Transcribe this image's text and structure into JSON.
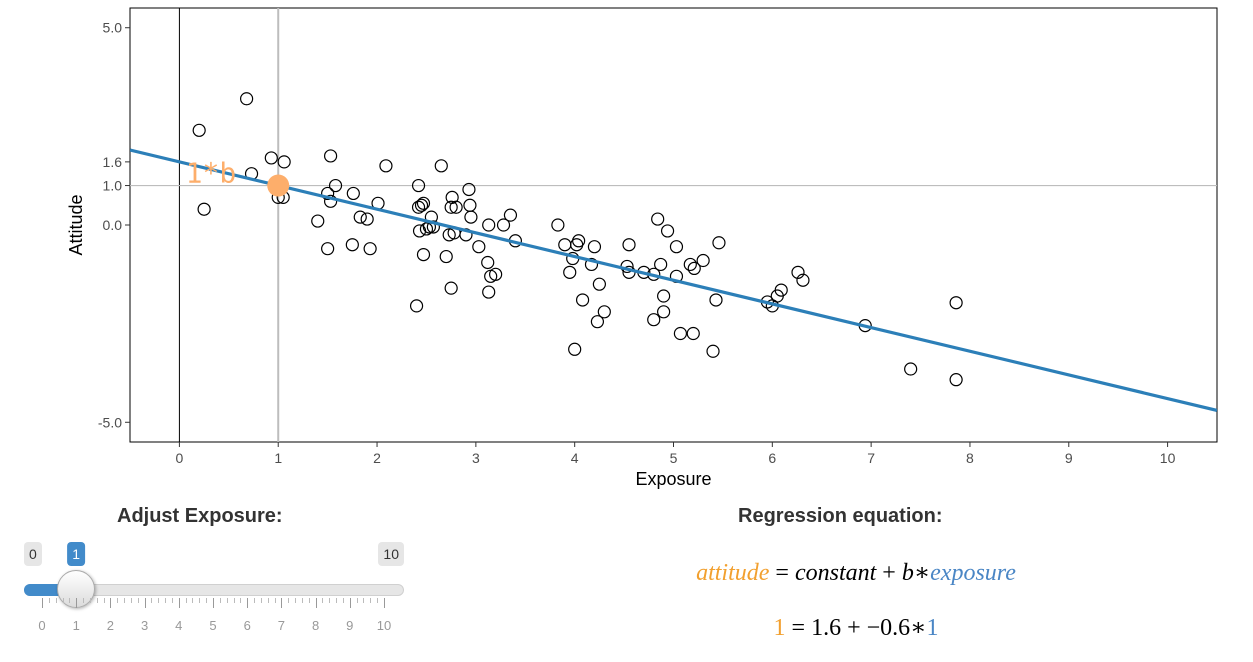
{
  "chart_data": {
    "type": "scatter",
    "xlabel": "Exposure",
    "ylabel": "Attitude",
    "xlim": [
      -0.5,
      10.5
    ],
    "ylim": [
      -5.5,
      5.5
    ],
    "x_ticks": [
      0,
      1,
      2,
      3,
      4,
      5,
      6,
      7,
      8,
      9,
      10
    ],
    "y_ticks": [
      {
        "value": 5.0,
        "label": "5.0"
      },
      {
        "value": 1.6,
        "label": "1.6"
      },
      {
        "value": 1.0,
        "label": "1.0"
      },
      {
        "value": 0.0,
        "label": "0.0"
      },
      {
        "value": -5.0,
        "label": "-5.0"
      }
    ],
    "grid": false,
    "points": [
      [
        0.2,
        2.4
      ],
      [
        0.25,
        0.4
      ],
      [
        0.68,
        3.2
      ],
      [
        0.73,
        1.3
      ],
      [
        0.93,
        1.7
      ],
      [
        1.0,
        0.7
      ],
      [
        1.05,
        0.7
      ],
      [
        1.06,
        1.6
      ],
      [
        1.4,
        0.1
      ],
      [
        1.5,
        0.8
      ],
      [
        1.5,
        -0.6
      ],
      [
        1.53,
        0.6
      ],
      [
        1.53,
        1.75
      ],
      [
        1.58,
        1.0
      ],
      [
        1.75,
        -0.5
      ],
      [
        1.76,
        0.8
      ],
      [
        1.83,
        0.2
      ],
      [
        1.9,
        0.15
      ],
      [
        1.93,
        -0.6
      ],
      [
        2.01,
        0.55
      ],
      [
        2.09,
        1.5
      ],
      [
        2.4,
        -2.05
      ],
      [
        2.42,
        1.0
      ],
      [
        2.42,
        0.45
      ],
      [
        2.43,
        -0.15
      ],
      [
        2.45,
        0.5
      ],
      [
        2.47,
        -0.75
      ],
      [
        2.47,
        0.55
      ],
      [
        2.5,
        -0.1
      ],
      [
        2.53,
        -0.05
      ],
      [
        2.55,
        0.2
      ],
      [
        2.57,
        -0.05
      ],
      [
        2.65,
        1.5
      ],
      [
        2.7,
        -0.8
      ],
      [
        2.73,
        -0.25
      ],
      [
        2.75,
        -1.6
      ],
      [
        2.75,
        0.45
      ],
      [
        2.76,
        0.7
      ],
      [
        2.78,
        -0.2
      ],
      [
        2.8,
        0.45
      ],
      [
        2.9,
        -0.25
      ],
      [
        2.93,
        0.9
      ],
      [
        2.94,
        0.5
      ],
      [
        2.95,
        0.2
      ],
      [
        3.03,
        -0.55
      ],
      [
        3.12,
        -0.95
      ],
      [
        3.13,
        -1.7
      ],
      [
        3.13,
        0.0
      ],
      [
        3.15,
        -1.3
      ],
      [
        3.2,
        -1.25
      ],
      [
        3.28,
        0.0
      ],
      [
        3.35,
        0.25
      ],
      [
        3.4,
        -0.4
      ],
      [
        3.83,
        0.0
      ],
      [
        3.9,
        -0.5
      ],
      [
        3.95,
        -1.2
      ],
      [
        3.98,
        -0.85
      ],
      [
        4.0,
        -3.15
      ],
      [
        4.02,
        -0.5
      ],
      [
        4.04,
        -0.4
      ],
      [
        4.08,
        -1.9
      ],
      [
        4.17,
        -1.0
      ],
      [
        4.2,
        -0.55
      ],
      [
        4.23,
        -2.45
      ],
      [
        4.25,
        -1.5
      ],
      [
        4.3,
        -2.2
      ],
      [
        4.53,
        -1.05
      ],
      [
        4.55,
        -0.5
      ],
      [
        4.55,
        -1.2
      ],
      [
        4.7,
        -1.2
      ],
      [
        4.8,
        -1.25
      ],
      [
        4.8,
        -2.4
      ],
      [
        4.84,
        0.15
      ],
      [
        4.87,
        -1.0
      ],
      [
        4.9,
        -2.2
      ],
      [
        4.9,
        -1.8
      ],
      [
        4.94,
        -0.15
      ],
      [
        5.03,
        -1.3
      ],
      [
        5.03,
        -0.55
      ],
      [
        5.07,
        -2.75
      ],
      [
        5.17,
        -1.0
      ],
      [
        5.2,
        -2.75
      ],
      [
        5.21,
        -1.1
      ],
      [
        5.3,
        -0.9
      ],
      [
        5.4,
        -3.2
      ],
      [
        5.43,
        -1.9
      ],
      [
        5.46,
        -0.45
      ],
      [
        5.95,
        -1.95
      ],
      [
        6.0,
        -2.05
      ],
      [
        6.05,
        -1.8
      ],
      [
        6.09,
        -1.65
      ],
      [
        6.26,
        -1.2
      ],
      [
        6.31,
        -1.4
      ],
      [
        6.94,
        -2.55
      ],
      [
        7.4,
        -3.65
      ],
      [
        7.86,
        -1.97
      ],
      [
        7.86,
        -3.92
      ]
    ],
    "regression": {
      "intercept": 1.6,
      "slope": -0.6
    },
    "selected_point": {
      "x": 1,
      "y": 1
    },
    "annotation": "1*b",
    "colors": {
      "line": "#2c7fb8",
      "highlight": "#fdae6b",
      "point_stroke": "#000000"
    }
  },
  "slider": {
    "title": "Adjust Exposure:",
    "min": 0,
    "max": 10,
    "value": 1,
    "min_label": "0",
    "max_label": "10",
    "value_label": "1",
    "grid_labels": [
      "0",
      "1",
      "2",
      "3",
      "4",
      "5",
      "6",
      "7",
      "8",
      "9",
      "10"
    ]
  },
  "equation": {
    "title": "Regression equation:",
    "line1": {
      "lhs": "attitude",
      "eq": "=",
      "constant": "constant",
      "plus": "+",
      "b": "b",
      "star": "∗",
      "var": "exposure"
    },
    "line2": {
      "lhs": "1",
      "eq": "=",
      "constant": "1.6",
      "plus": "+",
      "b": "−0.6",
      "star": "∗",
      "var": "1"
    },
    "colors": {
      "lhs": "#f2a02f",
      "var": "#4a86c5"
    }
  }
}
